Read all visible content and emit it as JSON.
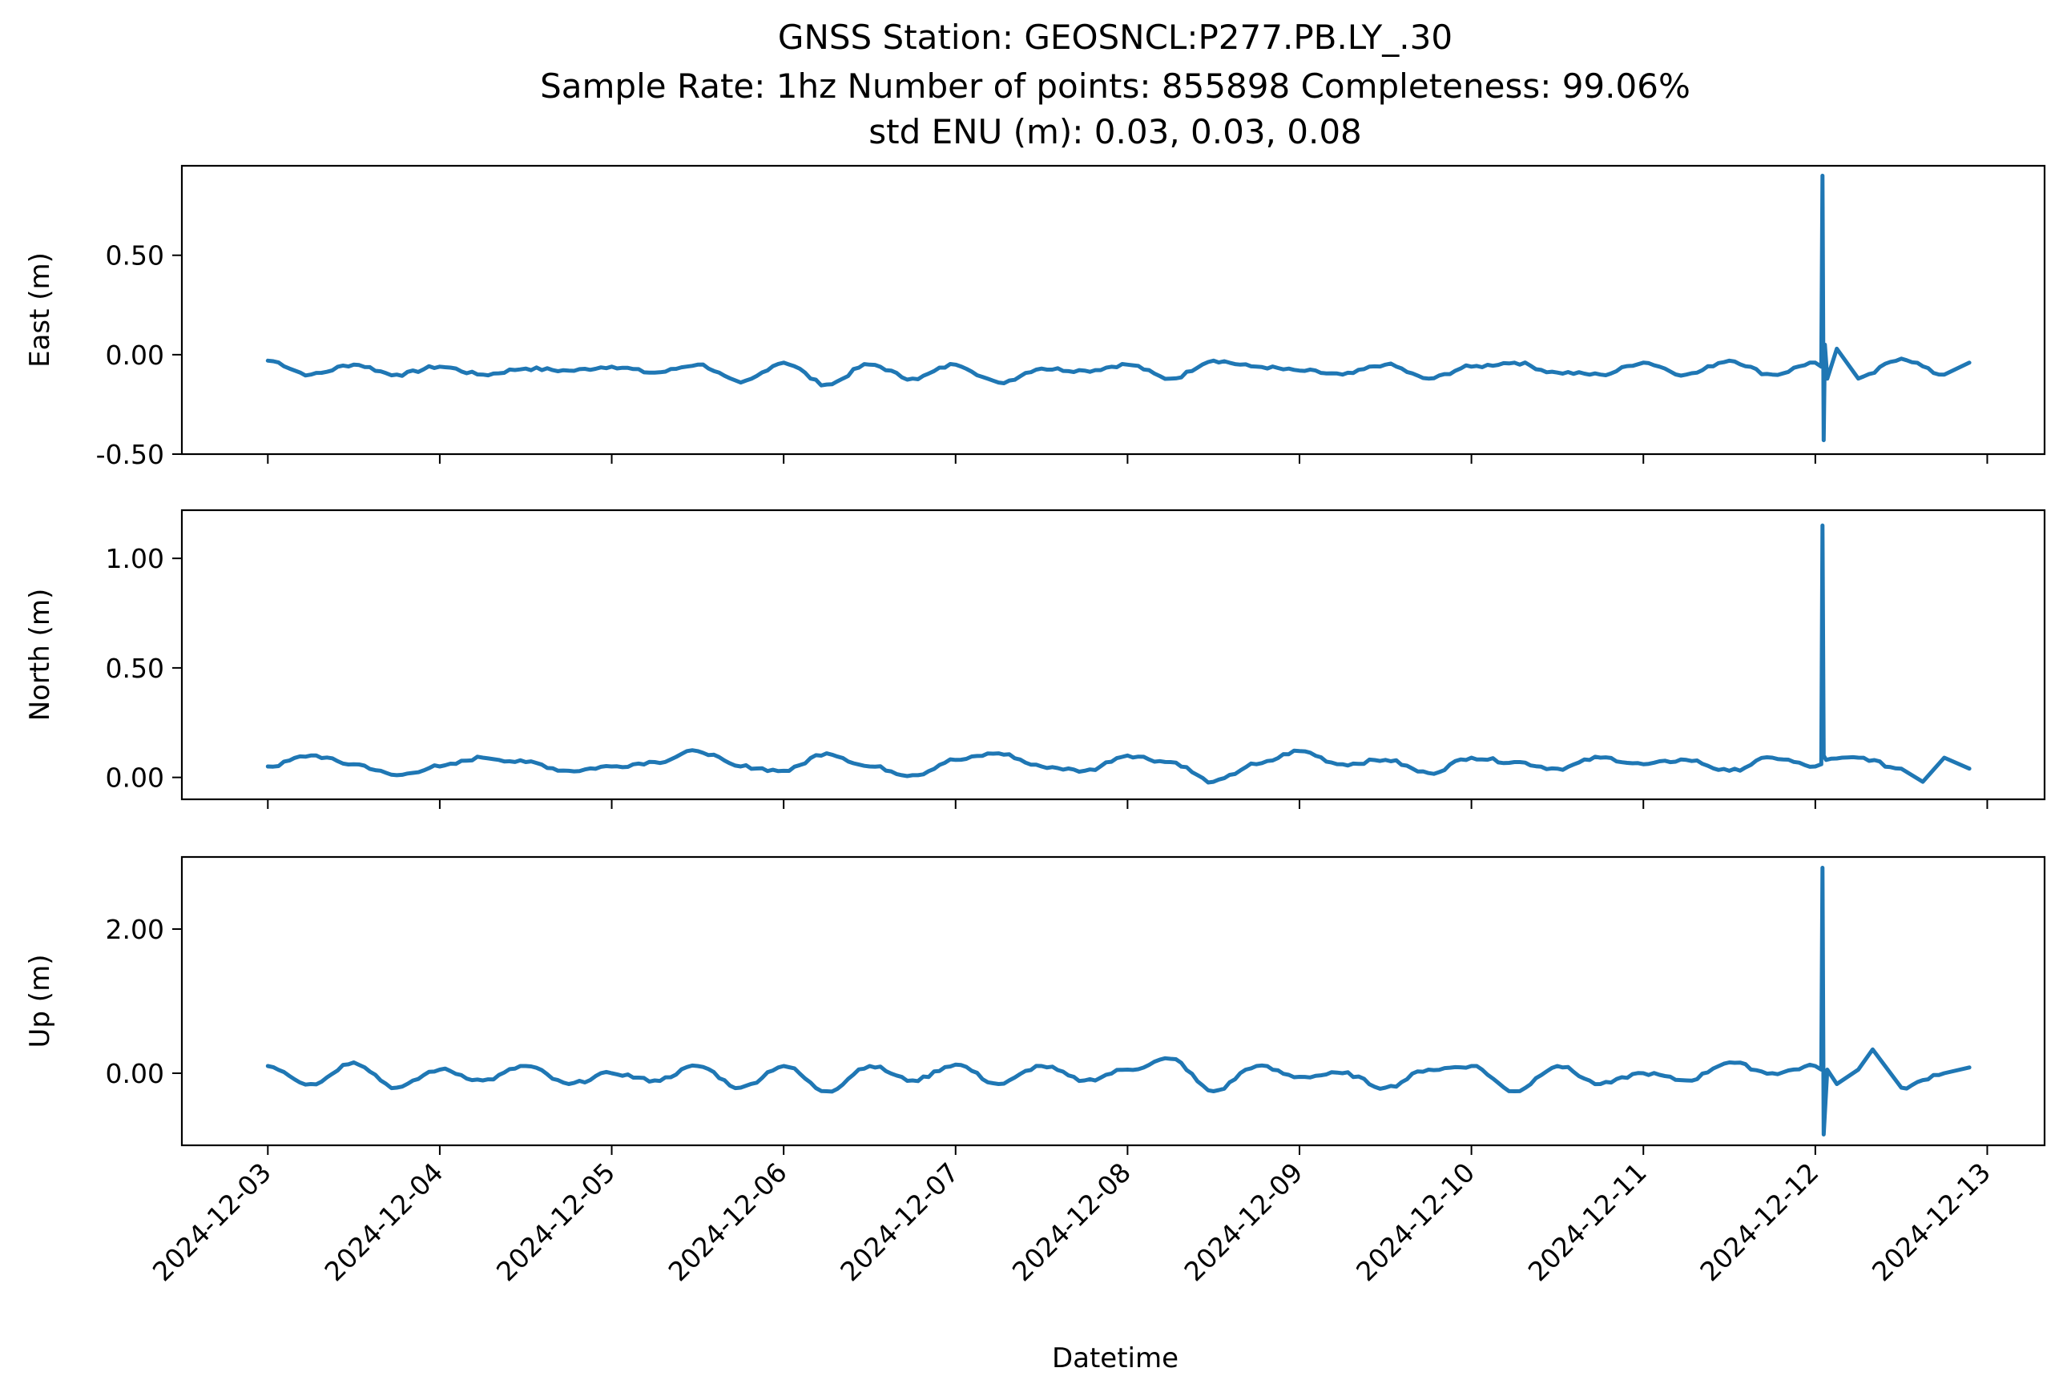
{
  "chart_data": {
    "type": "line",
    "title_lines": [
      "GNSS Station: GEOSNCL:P277.PB.LY_.30",
      "Sample Rate: 1hz   Number of points: 855898    Completeness:  99.06%",
      "std ENU (m):  0.03, 0.03, 0.08"
    ],
    "xlabel": "Datetime",
    "x_tick_labels": [
      "2024-12-03",
      "2024-12-04",
      "2024-12-05",
      "2024-12-06",
      "2024-12-07",
      "2024-12-08",
      "2024-12-09",
      "2024-12-10",
      "2024-12-11",
      "2024-12-12",
      "2024-12-13"
    ],
    "x_range": [
      "2024-12-02T12:00",
      "2024-12-13T08:00"
    ],
    "series_color": "#1f77b4",
    "panels": [
      {
        "ylabel": "East (m)",
        "ylim": [
          -0.5,
          0.95
        ],
        "yticks": [
          -0.5,
          0.0,
          0.5
        ],
        "ytick_labels": [
          "-0.50",
          "0.00",
          "0.50"
        ],
        "series": [
          {
            "x": [
              "2024-12-03T00:00",
              "2024-12-03T06:00",
              "2024-12-03T12:00",
              "2024-12-03T18:00",
              "2024-12-04T00:00",
              "2024-12-04T06:00",
              "2024-12-04T12:00",
              "2024-12-04T18:00",
              "2024-12-05T00:00",
              "2024-12-05T06:00",
              "2024-12-05T12:00",
              "2024-12-05T18:00",
              "2024-12-06T00:00",
              "2024-12-06T06:00",
              "2024-12-06T12:00",
              "2024-12-06T18:00",
              "2024-12-07T00:00",
              "2024-12-07T06:00",
              "2024-12-07T12:00",
              "2024-12-07T18:00",
              "2024-12-08T00:00",
              "2024-12-08T06:00",
              "2024-12-08T12:00",
              "2024-12-08T18:00",
              "2024-12-09T00:00",
              "2024-12-09T06:00",
              "2024-12-09T12:00",
              "2024-12-09T18:00",
              "2024-12-10T00:00",
              "2024-12-10T06:00",
              "2024-12-10T12:00",
              "2024-12-10T18:00",
              "2024-12-11T00:00",
              "2024-12-11T06:00",
              "2024-12-11T12:00",
              "2024-12-11T18:00",
              "2024-12-12T00:00",
              "2024-12-12T00:50",
              "2024-12-12T01:00",
              "2024-12-12T01:10",
              "2024-12-12T01:20",
              "2024-12-12T01:40",
              "2024-12-12T03:00",
              "2024-12-12T06:00",
              "2024-12-12T12:00",
              "2024-12-12T18:00",
              "2024-12-12T21:30"
            ],
            "y": [
              -0.03,
              -0.1,
              -0.05,
              -0.1,
              -0.06,
              -0.1,
              -0.07,
              -0.08,
              -0.06,
              -0.09,
              -0.05,
              -0.14,
              -0.04,
              -0.15,
              -0.05,
              -0.12,
              -0.05,
              -0.14,
              -0.07,
              -0.08,
              -0.05,
              -0.12,
              -0.03,
              -0.06,
              -0.08,
              -0.1,
              -0.05,
              -0.12,
              -0.06,
              -0.04,
              -0.09,
              -0.1,
              -0.04,
              -0.1,
              -0.03,
              -0.1,
              -0.04,
              -0.06,
              0.9,
              -0.43,
              0.05,
              -0.12,
              0.03,
              -0.12,
              -0.02,
              -0.1,
              -0.04
            ]
          }
        ]
      },
      {
        "ylabel": "North (m)",
        "ylim": [
          -0.1,
          1.22
        ],
        "yticks": [
          0.0,
          0.5,
          1.0
        ],
        "ytick_labels": [
          "0.00",
          "0.50",
          "1.00"
        ],
        "series": [
          {
            "x": [
              "2024-12-03T00:00",
              "2024-12-03T06:00",
              "2024-12-03T12:00",
              "2024-12-03T18:00",
              "2024-12-04T00:00",
              "2024-12-04T06:00",
              "2024-12-04T12:00",
              "2024-12-04T18:00",
              "2024-12-05T00:00",
              "2024-12-05T06:00",
              "2024-12-05T12:00",
              "2024-12-05T18:00",
              "2024-12-06T00:00",
              "2024-12-06T06:00",
              "2024-12-06T12:00",
              "2024-12-06T18:00",
              "2024-12-07T00:00",
              "2024-12-07T06:00",
              "2024-12-07T12:00",
              "2024-12-07T18:00",
              "2024-12-08T00:00",
              "2024-12-08T06:00",
              "2024-12-08T12:00",
              "2024-12-08T18:00",
              "2024-12-09T00:00",
              "2024-12-09T06:00",
              "2024-12-09T12:00",
              "2024-12-09T18:00",
              "2024-12-10T00:00",
              "2024-12-10T06:00",
              "2024-12-10T12:00",
              "2024-12-10T18:00",
              "2024-12-11T00:00",
              "2024-12-11T06:00",
              "2024-12-11T12:00",
              "2024-12-11T18:00",
              "2024-12-12T00:00",
              "2024-12-12T00:50",
              "2024-12-12T01:00",
              "2024-12-12T01:10",
              "2024-12-12T01:30",
              "2024-12-12T06:00",
              "2024-12-12T12:00",
              "2024-12-12T15:00",
              "2024-12-12T18:00",
              "2024-12-12T21:30"
            ],
            "y": [
              0.05,
              0.1,
              0.06,
              0.01,
              0.05,
              0.09,
              0.07,
              0.03,
              0.05,
              0.07,
              0.12,
              0.05,
              0.03,
              0.11,
              0.05,
              0.01,
              0.08,
              0.11,
              0.05,
              0.03,
              0.1,
              0.07,
              -0.02,
              0.06,
              0.12,
              0.06,
              0.08,
              0.02,
              0.09,
              0.07,
              0.04,
              0.09,
              0.06,
              0.08,
              0.03,
              0.09,
              0.05,
              0.06,
              1.15,
              0.1,
              0.08,
              0.09,
              0.04,
              -0.02,
              0.09,
              0.04
            ]
          }
        ]
      },
      {
        "ylabel": "Up (m)",
        "ylim": [
          -1.0,
          3.0
        ],
        "yticks": [
          0.0,
          2.0
        ],
        "ytick_labels": [
          "0.00",
          "2.00"
        ],
        "series": [
          {
            "x": [
              "2024-12-03T00:00",
              "2024-12-03T06:00",
              "2024-12-03T12:00",
              "2024-12-03T18:00",
              "2024-12-04T00:00",
              "2024-12-04T06:00",
              "2024-12-04T12:00",
              "2024-12-04T18:00",
              "2024-12-05T00:00",
              "2024-12-05T06:00",
              "2024-12-05T12:00",
              "2024-12-05T18:00",
              "2024-12-06T00:00",
              "2024-12-06T06:00",
              "2024-12-06T12:00",
              "2024-12-06T18:00",
              "2024-12-07T00:00",
              "2024-12-07T06:00",
              "2024-12-07T12:00",
              "2024-12-07T18:00",
              "2024-12-08T00:00",
              "2024-12-08T06:00",
              "2024-12-08T12:00",
              "2024-12-08T18:00",
              "2024-12-09T00:00",
              "2024-12-09T06:00",
              "2024-12-09T12:00",
              "2024-12-09T18:00",
              "2024-12-10T00:00",
              "2024-12-10T06:00",
              "2024-12-10T12:00",
              "2024-12-10T18:00",
              "2024-12-11T00:00",
              "2024-12-11T06:00",
              "2024-12-11T12:00",
              "2024-12-11T18:00",
              "2024-12-12T00:00",
              "2024-12-12T00:50",
              "2024-12-12T01:00",
              "2024-12-12T01:10",
              "2024-12-12T01:40",
              "2024-12-12T03:00",
              "2024-12-12T06:00",
              "2024-12-12T08:00",
              "2024-12-12T12:00",
              "2024-12-12T18:00",
              "2024-12-12T21:30"
            ],
            "y": [
              0.1,
              -0.15,
              0.15,
              -0.2,
              0.05,
              -0.1,
              0.1,
              -0.15,
              0.0,
              -0.1,
              0.1,
              -0.2,
              0.1,
              -0.25,
              0.1,
              -0.1,
              0.12,
              -0.15,
              0.1,
              -0.1,
              0.05,
              0.2,
              -0.25,
              0.1,
              -0.05,
              0.0,
              -0.2,
              0.05,
              0.1,
              -0.25,
              0.1,
              -0.15,
              0.0,
              -0.1,
              0.15,
              0.0,
              0.1,
              0.05,
              2.85,
              -0.85,
              0.05,
              -0.15,
              0.05,
              0.33,
              -0.2,
              0.0,
              0.08
            ]
          }
        ]
      }
    ]
  }
}
